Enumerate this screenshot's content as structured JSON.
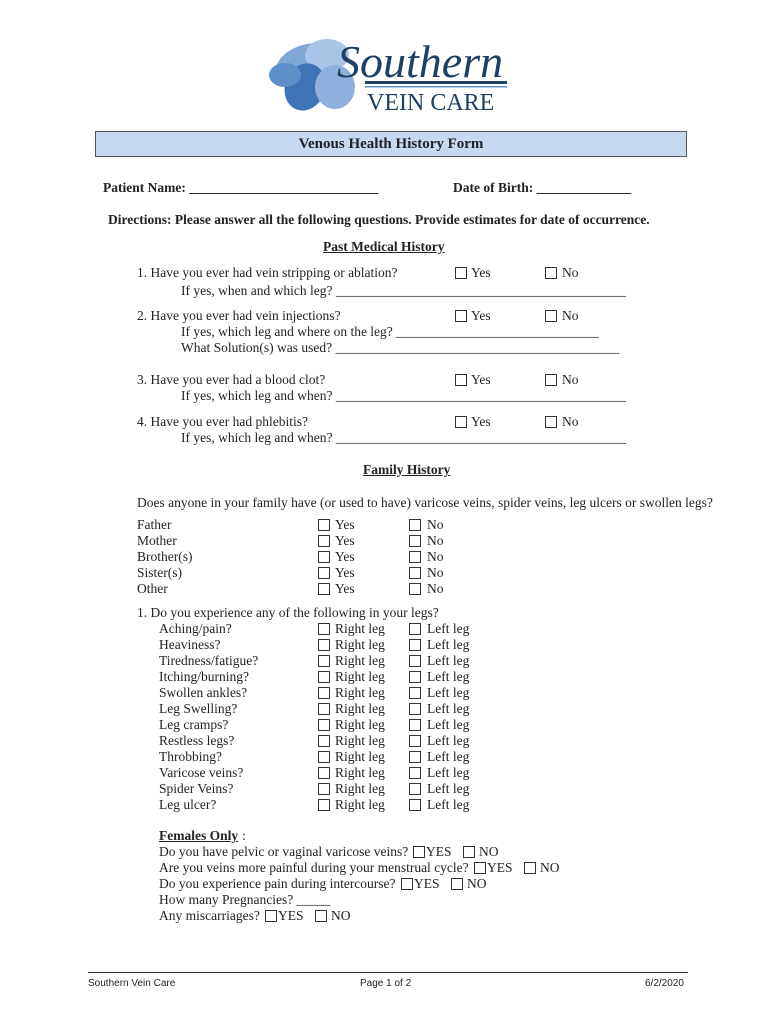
{
  "logo": {
    "line1": "Southern",
    "line2": "VEIN CARE"
  },
  "title": "Venous Health History Form",
  "patient_name_label": "Patient Name: ____________________________",
  "dob_label": "Date of Birth: ______________",
  "directions": "Directions:  Please answer all the following questions.  Provide estimates for date of occurrence.",
  "yes": "Yes",
  "no": "No",
  "past_medical": {
    "heading": "Past Medical History",
    "questions": [
      {
        "q": "1. Have you ever had vein stripping or ablation?",
        "subs": [
          "If yes, when and which leg? ___________________________________________"
        ]
      },
      {
        "q": "2. Have you ever had vein injections?",
        "subs": [
          "If yes, which leg and where on the leg? ______________________________",
          "What Solution(s) was used? __________________________________________"
        ]
      },
      {
        "q": "3. Have you ever had a blood clot?",
        "subs": [
          "If yes, which leg and when? ___________________________________________"
        ]
      },
      {
        "q": "4. Have you ever had phlebitis?",
        "subs": [
          "If yes, which leg and when? ___________________________________________"
        ]
      }
    ]
  },
  "family_history": {
    "heading": "Family History",
    "question": "Does anyone in your family have (or used to have) varicose veins, spider veins, leg ulcers or swollen legs?",
    "members": [
      "Father",
      "Mother",
      "Brother(s)",
      "Sister(s)",
      "Other"
    ]
  },
  "symptoms": {
    "question": "1.   Do you experience any of the following in your legs?",
    "right": "Right leg",
    "left": "Left leg",
    "items": [
      "Aching/pain?",
      "Heaviness?",
      "Tiredness/fatigue?",
      "Itching/burning?",
      "Swollen ankles?",
      "Leg Swelling?",
      "Leg cramps?",
      "Restless legs?",
      "Throbbing?",
      "Varicose veins?",
      "Spider Veins?",
      "Leg ulcer?"
    ]
  },
  "females": {
    "heading": "Females Only",
    "colon": ":",
    "yes": "YES",
    "no": "NO",
    "questions": [
      {
        "q": "Do you have pelvic or vaginal varicose veins?",
        "checks": true
      },
      {
        "q": "Are you veins more painful during your menstrual cycle?",
        "checks": true
      },
      {
        "q": "Do you experience pain during intercourse?",
        "checks": true
      },
      {
        "q": "How many Pregnancies?  _____",
        "checks": false
      },
      {
        "q": "Any miscarriages?",
        "checks": true
      }
    ]
  },
  "footer": {
    "left": "Southern Vein Care",
    "center": "Page 1 of 2",
    "right": "6/2/2020"
  }
}
